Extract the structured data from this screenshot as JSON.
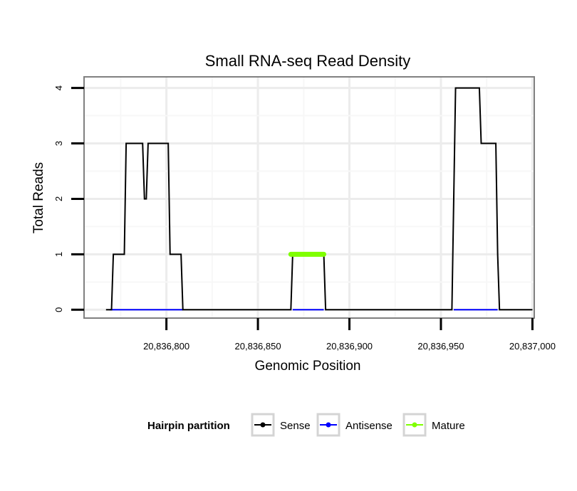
{
  "chart_data": {
    "type": "line",
    "title": "Small RNA-seq Read Density",
    "xlabel": "Genomic Position",
    "ylabel": "Total Reads",
    "xlim": [
      20836755,
      20837001
    ],
    "ylim": [
      -0.15,
      4.2
    ],
    "grid": true,
    "x_ticks": [
      {
        "value": 20836800,
        "label": "20,836,800"
      },
      {
        "value": 20836850,
        "label": "20,836,850"
      },
      {
        "value": 20836900,
        "label": "20,836,900"
      },
      {
        "value": 20836950,
        "label": "20,836,950"
      },
      {
        "value": 20837000,
        "label": "20,837,000"
      }
    ],
    "y_ticks": [
      {
        "value": 0,
        "label": "0"
      },
      {
        "value": 1,
        "label": "1"
      },
      {
        "value": 2,
        "label": "2"
      },
      {
        "value": 3,
        "label": "3"
      },
      {
        "value": 4,
        "label": "4"
      }
    ],
    "legend": {
      "title": "Hairpin partition",
      "position": "bottom",
      "entries": [
        {
          "label": "Sense",
          "color": "#000000"
        },
        {
          "label": "Antisense",
          "color": "#0000ff"
        },
        {
          "label": "Mature",
          "color": "#7fff00"
        }
      ]
    },
    "series": [
      {
        "name": "Sense",
        "color": "#000000",
        "x": [
          20836767,
          20836770,
          20836771,
          20836777,
          20836778,
          20836787,
          20836788,
          20836789,
          20836790,
          20836801,
          20836802,
          20836808,
          20836809,
          20836868,
          20836869,
          20836886,
          20836887,
          20836956,
          20836957,
          20836958,
          20836971,
          20836972,
          20836980,
          20836981,
          20836982,
          20837000
        ],
        "values": [
          0,
          0,
          1,
          1,
          3,
          3,
          2,
          2,
          3,
          3,
          1,
          1,
          0,
          0,
          1,
          1,
          0,
          0,
          2,
          4,
          4,
          3,
          3,
          1,
          0,
          0
        ]
      },
      {
        "name": "Antisense",
        "color": "#0000ff",
        "x": [
          20836769,
          20836809,
          20836869,
          20836886,
          20836957,
          20836981
        ],
        "values": [
          0,
          0,
          0,
          0,
          0,
          0
        ],
        "segments": [
          [
            0,
            1
          ],
          [
            2,
            3
          ],
          [
            4,
            5
          ]
        ]
      },
      {
        "name": "Mature",
        "color": "#7fff00",
        "x": [
          20836868,
          20836886
        ],
        "values": [
          1,
          1
        ]
      }
    ]
  }
}
